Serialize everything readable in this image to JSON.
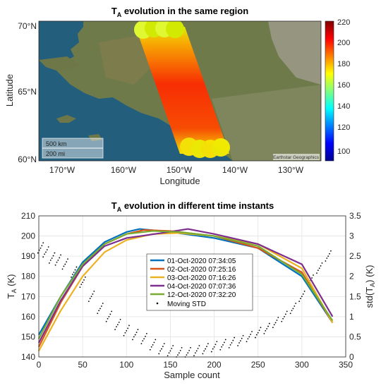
{
  "map_panel": {
    "title_main": "T",
    "title_sub": "A",
    "title_rest": " evolution in the same region",
    "xlabel": "Longitude",
    "ylabel": "Latitude",
    "xticks": [
      "170°W",
      "160°W",
      "150°W",
      "140°W",
      "130°W"
    ],
    "yticks": [
      "70°N",
      "65°N",
      "60°N"
    ],
    "scale_km": "500 km",
    "scale_mi": "200 mi",
    "attribution": "Earthstar Geographics",
    "colorbar_ticks": [
      "220",
      "200",
      "180",
      "160",
      "140",
      "120",
      "100"
    ]
  },
  "chart_data": {
    "type": "line",
    "title": "T_A evolution in different time instants",
    "title_main": "T",
    "title_sub": "A",
    "title_rest": " evolution in different time instants",
    "xlabel": "Sample count",
    "ylabel_left_main": "T",
    "ylabel_left_sub": "A",
    "ylabel_left_rest": " (K)",
    "ylabel_right_pre": "std(T",
    "ylabel_right_sub": "A",
    "ylabel_right_rest": ") (K)",
    "xlim": [
      0,
      350
    ],
    "ylim_left": [
      140,
      210
    ],
    "ylim_right": [
      0,
      3.5
    ],
    "xticks": [
      0,
      50,
      100,
      150,
      200,
      250,
      300,
      350
    ],
    "yticks_left": [
      140,
      150,
      160,
      170,
      180,
      190,
      200,
      210
    ],
    "yticks_right": [
      0,
      0.5,
      1,
      1.5,
      2,
      2.5,
      3,
      3.5
    ],
    "grid": true,
    "legend_position": "center",
    "series": [
      {
        "name": "01-Oct-2020 07:34:05",
        "color": "#0072BD",
        "x": [
          0,
          25,
          50,
          75,
          100,
          115,
          150,
          200,
          250,
          300,
          335
        ],
        "y": [
          151,
          170,
          187,
          197,
          202,
          203.5,
          202,
          199,
          194,
          180,
          157
        ]
      },
      {
        "name": "02-Oct-2020 07:25:16",
        "color": "#D95319",
        "x": [
          0,
          25,
          50,
          75,
          100,
          120,
          150,
          200,
          250,
          300,
          335
        ],
        "y": [
          145,
          167,
          185,
          196,
          201,
          203,
          202.5,
          200,
          194,
          182,
          157
        ]
      },
      {
        "name": "03-Oct-2020 07:16:26",
        "color": "#EDB120",
        "x": [
          0,
          25,
          50,
          75,
          100,
          130,
          160,
          200,
          250,
          300,
          335
        ],
        "y": [
          143,
          163,
          180,
          192,
          198,
          201,
          201.5,
          200,
          196,
          184,
          157
        ]
      },
      {
        "name": "04-Oct-2020 07:07:36",
        "color": "#7E2F8E",
        "x": [
          0,
          25,
          50,
          75,
          100,
          140,
          170,
          200,
          250,
          300,
          335
        ],
        "y": [
          147,
          168,
          185,
          195,
          199,
          201.5,
          203.5,
          201,
          196,
          186,
          160
        ]
      },
      {
        "name": "12-Oct-2020 07:32:20",
        "color": "#77AC30",
        "x": [
          0,
          25,
          50,
          75,
          100,
          130,
          160,
          200,
          250,
          300,
          335
        ],
        "y": [
          149,
          170,
          186,
          196,
          201,
          202.5,
          202,
          200,
          195,
          181,
          158
        ]
      }
    ],
    "scatter_series": {
      "name": "Moving STD",
      "color": "#000000",
      "axis": "right",
      "x": [
        2,
        8,
        15,
        22,
        30,
        40,
        50,
        60,
        70,
        80,
        90,
        100,
        110,
        120,
        130,
        140,
        150,
        160,
        170,
        180,
        190,
        200,
        210,
        220,
        230,
        240,
        250,
        260,
        270,
        280,
        290,
        300,
        310,
        320,
        330
      ],
      "y": [
        2.7,
        2.6,
        2.45,
        2.4,
        2.3,
        2.1,
        1.85,
        1.5,
        1.2,
        1.0,
        0.8,
        0.65,
        0.55,
        0.45,
        0.3,
        0.2,
        0.15,
        0.1,
        0.1,
        0.15,
        0.2,
        0.25,
        0.3,
        0.35,
        0.4,
        0.5,
        0.6,
        0.7,
        0.85,
        1.0,
        1.2,
        1.5,
        1.9,
        2.2,
        2.5
      ]
    }
  }
}
